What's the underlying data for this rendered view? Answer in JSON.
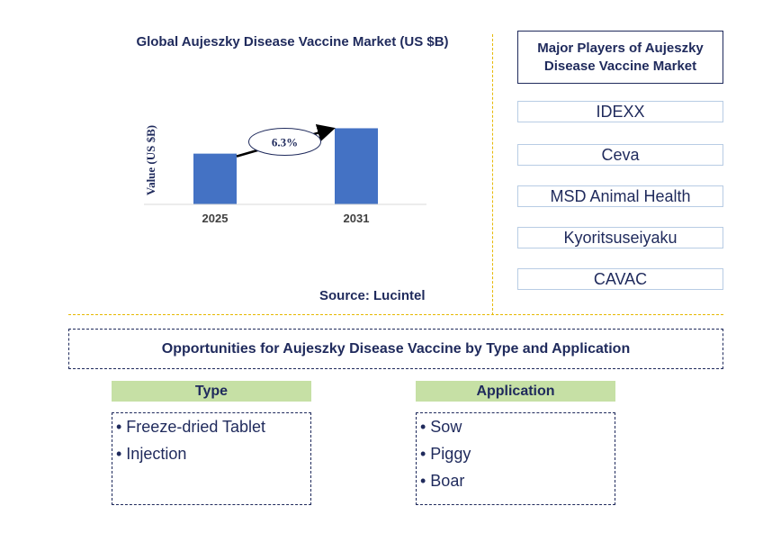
{
  "chart_data": {
    "type": "bar",
    "title": "Global Aujeszky Disease Vaccine Market (US $B)",
    "ylabel": "Value (US $B)",
    "categories": [
      "2025",
      "2031"
    ],
    "values": [
      1.0,
      1.5
    ],
    "ylim": [
      0,
      1.65
    ],
    "annotation": "6.3%",
    "bar_color": "#4472c4",
    "source": "Source: Lucintel"
  },
  "players": {
    "header": "Major Players of Aujeszky Disease Vaccine Market",
    "items": [
      "IDEXX",
      "Ceva",
      "MSD Animal Health",
      "Kyoritsuseiyaku",
      "CAVAC"
    ]
  },
  "opportunities": {
    "title": "Opportunities for Aujeszky Disease Vaccine by Type and Application",
    "type_header": "Type",
    "type_items": [
      "• Freeze-dried Tablet",
      "• Injection"
    ],
    "application_header": "Application",
    "application_items": [
      "• Sow",
      "• Piggy",
      "• Boar"
    ]
  },
  "colors": {
    "text": "#1f2a5c",
    "divider": "#e6b800",
    "category_header_bg": "#c6e0a5",
    "player_border": "#b8cce4"
  }
}
